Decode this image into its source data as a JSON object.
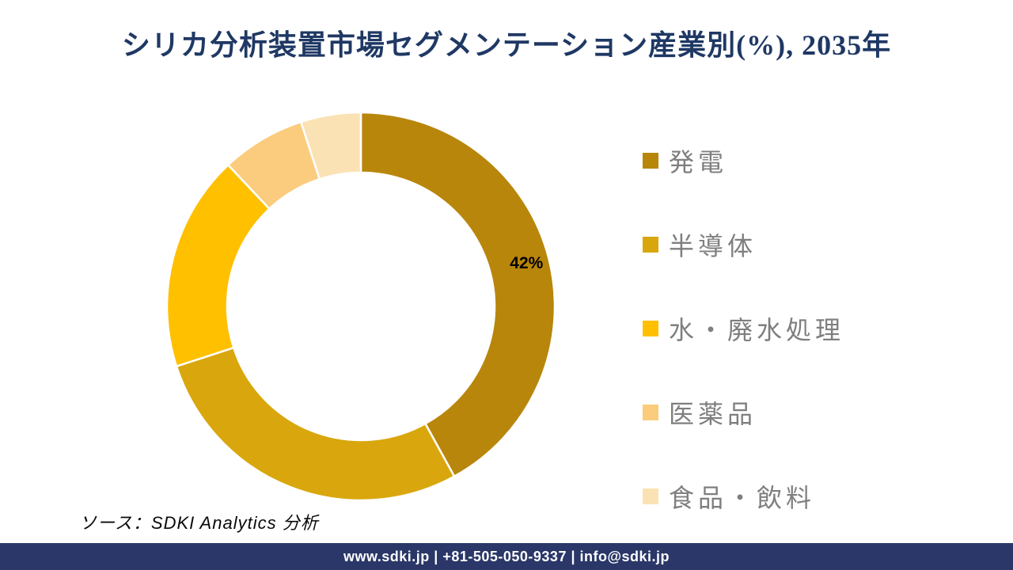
{
  "page": {
    "title": "シリカ分析装置市場セグメンテーション産業別(%), 2035年",
    "source_note": "ソース：SDKI Analytics 分析",
    "footer_text": "www.sdki.jp | +81-505-050-9337 | info@sdki.jp"
  },
  "colors": {
    "title_text": "#1F3864",
    "legend_text": "#7F7F7F",
    "data_label_text": "#000000",
    "separator": "#FFFFFF",
    "footer_bg": "#2A3768",
    "footer_text": "#FFFFFF"
  },
  "chart_data": {
    "type": "pie",
    "subtype": "donut",
    "title": "シリカ分析装置市場セグメンテーション産業別(%), 2035年",
    "unit": "%",
    "year": "2035年",
    "start_angle_deg": 0,
    "direction": "clockwise",
    "donut_hole_ratio": 0.69,
    "legend_position": "right",
    "total": 100,
    "segments": [
      {
        "label": "発電",
        "value": 42,
        "color": "#B8860B",
        "data_label": "42%"
      },
      {
        "label": "半導体",
        "value": 28,
        "color": "#D9A70D",
        "data_label": ""
      },
      {
        "label": "水・廃水処理",
        "value": 18,
        "color": "#FFC000",
        "data_label": ""
      },
      {
        "label": "医薬品",
        "value": 7,
        "color": "#FBCC7D",
        "data_label": ""
      },
      {
        "label": "食品・飲料",
        "value": 5,
        "color": "#FBE2B4",
        "data_label": ""
      }
    ]
  }
}
